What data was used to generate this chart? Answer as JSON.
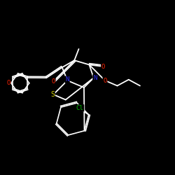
{
  "background_color": "#000000",
  "bond_color": "#ffffff",
  "atom_colors": {
    "Cl": "#00bb00",
    "O": "#ff2200",
    "N": "#3333ff",
    "S": "#cccc00",
    "C": "#ffffff"
  },
  "figsize": [
    2.5,
    2.5
  ],
  "dpi": 100
}
